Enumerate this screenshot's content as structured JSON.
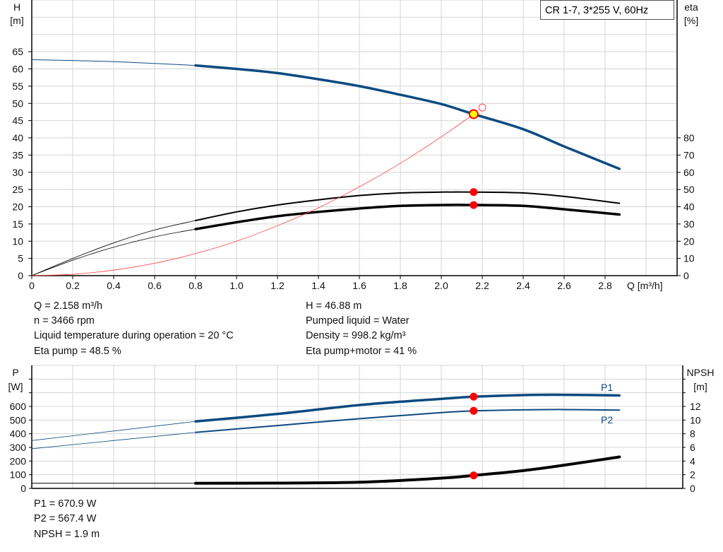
{
  "title": "CR 1-7, 3*255 V, 60Hz",
  "colors": {
    "head": "#0d4a80",
    "eta": "#000000",
    "system": "#ff4040",
    "duty_point": "#ff0000",
    "duty_fill_yellow": "#ffff00",
    "power": "#0d4a80",
    "npsh": "#000000",
    "grid": "#d4d4d4"
  },
  "chart_data": [
    {
      "type": "line",
      "xlabel": "Q [m³/h]",
      "ylabel_left": [
        "H",
        "[m]"
      ],
      "ylabel_right": [
        "eta",
        "[%]"
      ],
      "xlim": [
        0,
        3.15
      ],
      "ylim_left": [
        0,
        80
      ],
      "ylim_right": [
        0,
        160
      ],
      "x_ticks": [
        "0",
        "0.2",
        "0.4",
        "0.6",
        "0.8",
        "1.0",
        "1.2",
        "1.4",
        "1.6",
        "1.8",
        "2.0",
        "2.2",
        "2.4",
        "2.6",
        "2.8"
      ],
      "y_left_ticks": [
        "0",
        "5",
        "10",
        "15",
        "20",
        "25",
        "30",
        "35",
        "40",
        "45",
        "50",
        "55",
        "60",
        "65"
      ],
      "y_right_ticks": [
        "0",
        "10",
        "20",
        "30",
        "40",
        "50",
        "60",
        "70",
        "80"
      ],
      "grid": true,
      "series": [
        {
          "id": "head",
          "axis": "left",
          "x": [
            0,
            0.4,
            0.8,
            1.0,
            1.2,
            1.4,
            1.6,
            1.8,
            2.0,
            2.158,
            2.4,
            2.6,
            2.87
          ],
          "y": [
            62.7,
            62.1,
            61,
            60,
            58.8,
            57,
            55,
            52.5,
            49.8,
            46.88,
            42.5,
            37.5,
            31
          ],
          "thin_until": 0.8
        },
        {
          "id": "eta-pump",
          "axis": "right",
          "x": [
            0,
            0.2,
            0.4,
            0.6,
            0.8,
            1.0,
            1.2,
            1.4,
            1.6,
            1.8,
            2.0,
            2.158,
            2.4,
            2.6,
            2.87
          ],
          "y": [
            0,
            10,
            19,
            26.5,
            32,
            37,
            41,
            44,
            46.5,
            48,
            48.5,
            48.5,
            48,
            46,
            42
          ],
          "thin_until": 0.8
        },
        {
          "id": "eta-pump-motor",
          "axis": "right",
          "x": [
            0,
            0.2,
            0.4,
            0.6,
            0.8,
            1.0,
            1.2,
            1.4,
            1.6,
            1.8,
            2.0,
            2.158,
            2.4,
            2.6,
            2.87
          ],
          "y": [
            0,
            9,
            16.5,
            22.5,
            27,
            31,
            34.5,
            37,
            39,
            40.5,
            41,
            41,
            40.5,
            38.5,
            35.5
          ],
          "thin_until": 0.8
        },
        {
          "id": "system-curve",
          "axis": "left",
          "x": [
            0,
            0.2,
            0.4,
            0.6,
            0.8,
            1.0,
            1.2,
            1.4,
            1.6,
            1.8,
            2.0,
            2.158
          ],
          "y": [
            0,
            0.4,
            1.6,
            3.6,
            6.4,
            10,
            14.5,
            19.7,
            25.8,
            32.6,
            40.3,
            46.88
          ]
        }
      ],
      "duty_point": {
        "q": 2.158,
        "h": 46.88,
        "eta_pump": 48.5,
        "eta_total": 41
      },
      "requested_point": {
        "q": 2.2,
        "h": 48.8
      }
    },
    {
      "type": "line",
      "ylabel_left": [
        "P",
        "[W]"
      ],
      "ylabel_right": [
        "NPSH",
        "[m]"
      ],
      "xlim": [
        0,
        3.15
      ],
      "ylim_left": [
        0,
        900
      ],
      "ylim_right": [
        0,
        18
      ],
      "y_left_ticks": [
        "0",
        "100",
        "200",
        "300",
        "400",
        "500",
        "600"
      ],
      "y_right_ticks": [
        "0",
        "2",
        "4",
        "6",
        "8",
        "10",
        "12"
      ],
      "grid": true,
      "series": [
        {
          "id": "p1",
          "name": "P1",
          "axis": "left",
          "x": [
            0,
            0.8,
            1.2,
            1.6,
            2.0,
            2.158,
            2.4,
            2.6,
            2.87
          ],
          "y": [
            350,
            490,
            545,
            610,
            655,
            670.9,
            683,
            685,
            680
          ],
          "thin_until": 0.8
        },
        {
          "id": "p2",
          "name": "P2",
          "axis": "left",
          "x": [
            0,
            0.8,
            1.2,
            1.6,
            2.0,
            2.158,
            2.4,
            2.6,
            2.87
          ],
          "y": [
            290,
            410,
            460,
            510,
            555,
            567.4,
            575,
            577,
            573
          ],
          "thin_until": 0.8
        },
        {
          "id": "npsh",
          "axis": "right",
          "x": [
            0,
            0.8,
            1.2,
            1.6,
            2.0,
            2.158,
            2.4,
            2.6,
            2.87
          ],
          "y": [
            0.75,
            0.75,
            0.78,
            0.9,
            1.5,
            1.9,
            2.6,
            3.4,
            4.6
          ],
          "thin_until": 0.8
        }
      ],
      "duty_point": {
        "q": 2.158,
        "p1": 670.9,
        "p2": 567.4,
        "npsh": 1.9
      }
    }
  ],
  "info_top": {
    "q": "Q = 2.158 m³/h",
    "n": "n = 3466 rpm",
    "temp": "Liquid temperature during operation = 20 °C",
    "eta_pump": "Eta pump = 48.5 %",
    "h": "H = 46.88 m",
    "liquid": "Pumped liquid = Water",
    "density": "Density = 998.2 kg/m³",
    "eta_total": "Eta pump+motor = 41 %"
  },
  "info_bottom": {
    "p1": "P1 = 670.9 W",
    "p2": "P2 = 567.4 W",
    "npsh": "NPSH = 1.9 m"
  }
}
